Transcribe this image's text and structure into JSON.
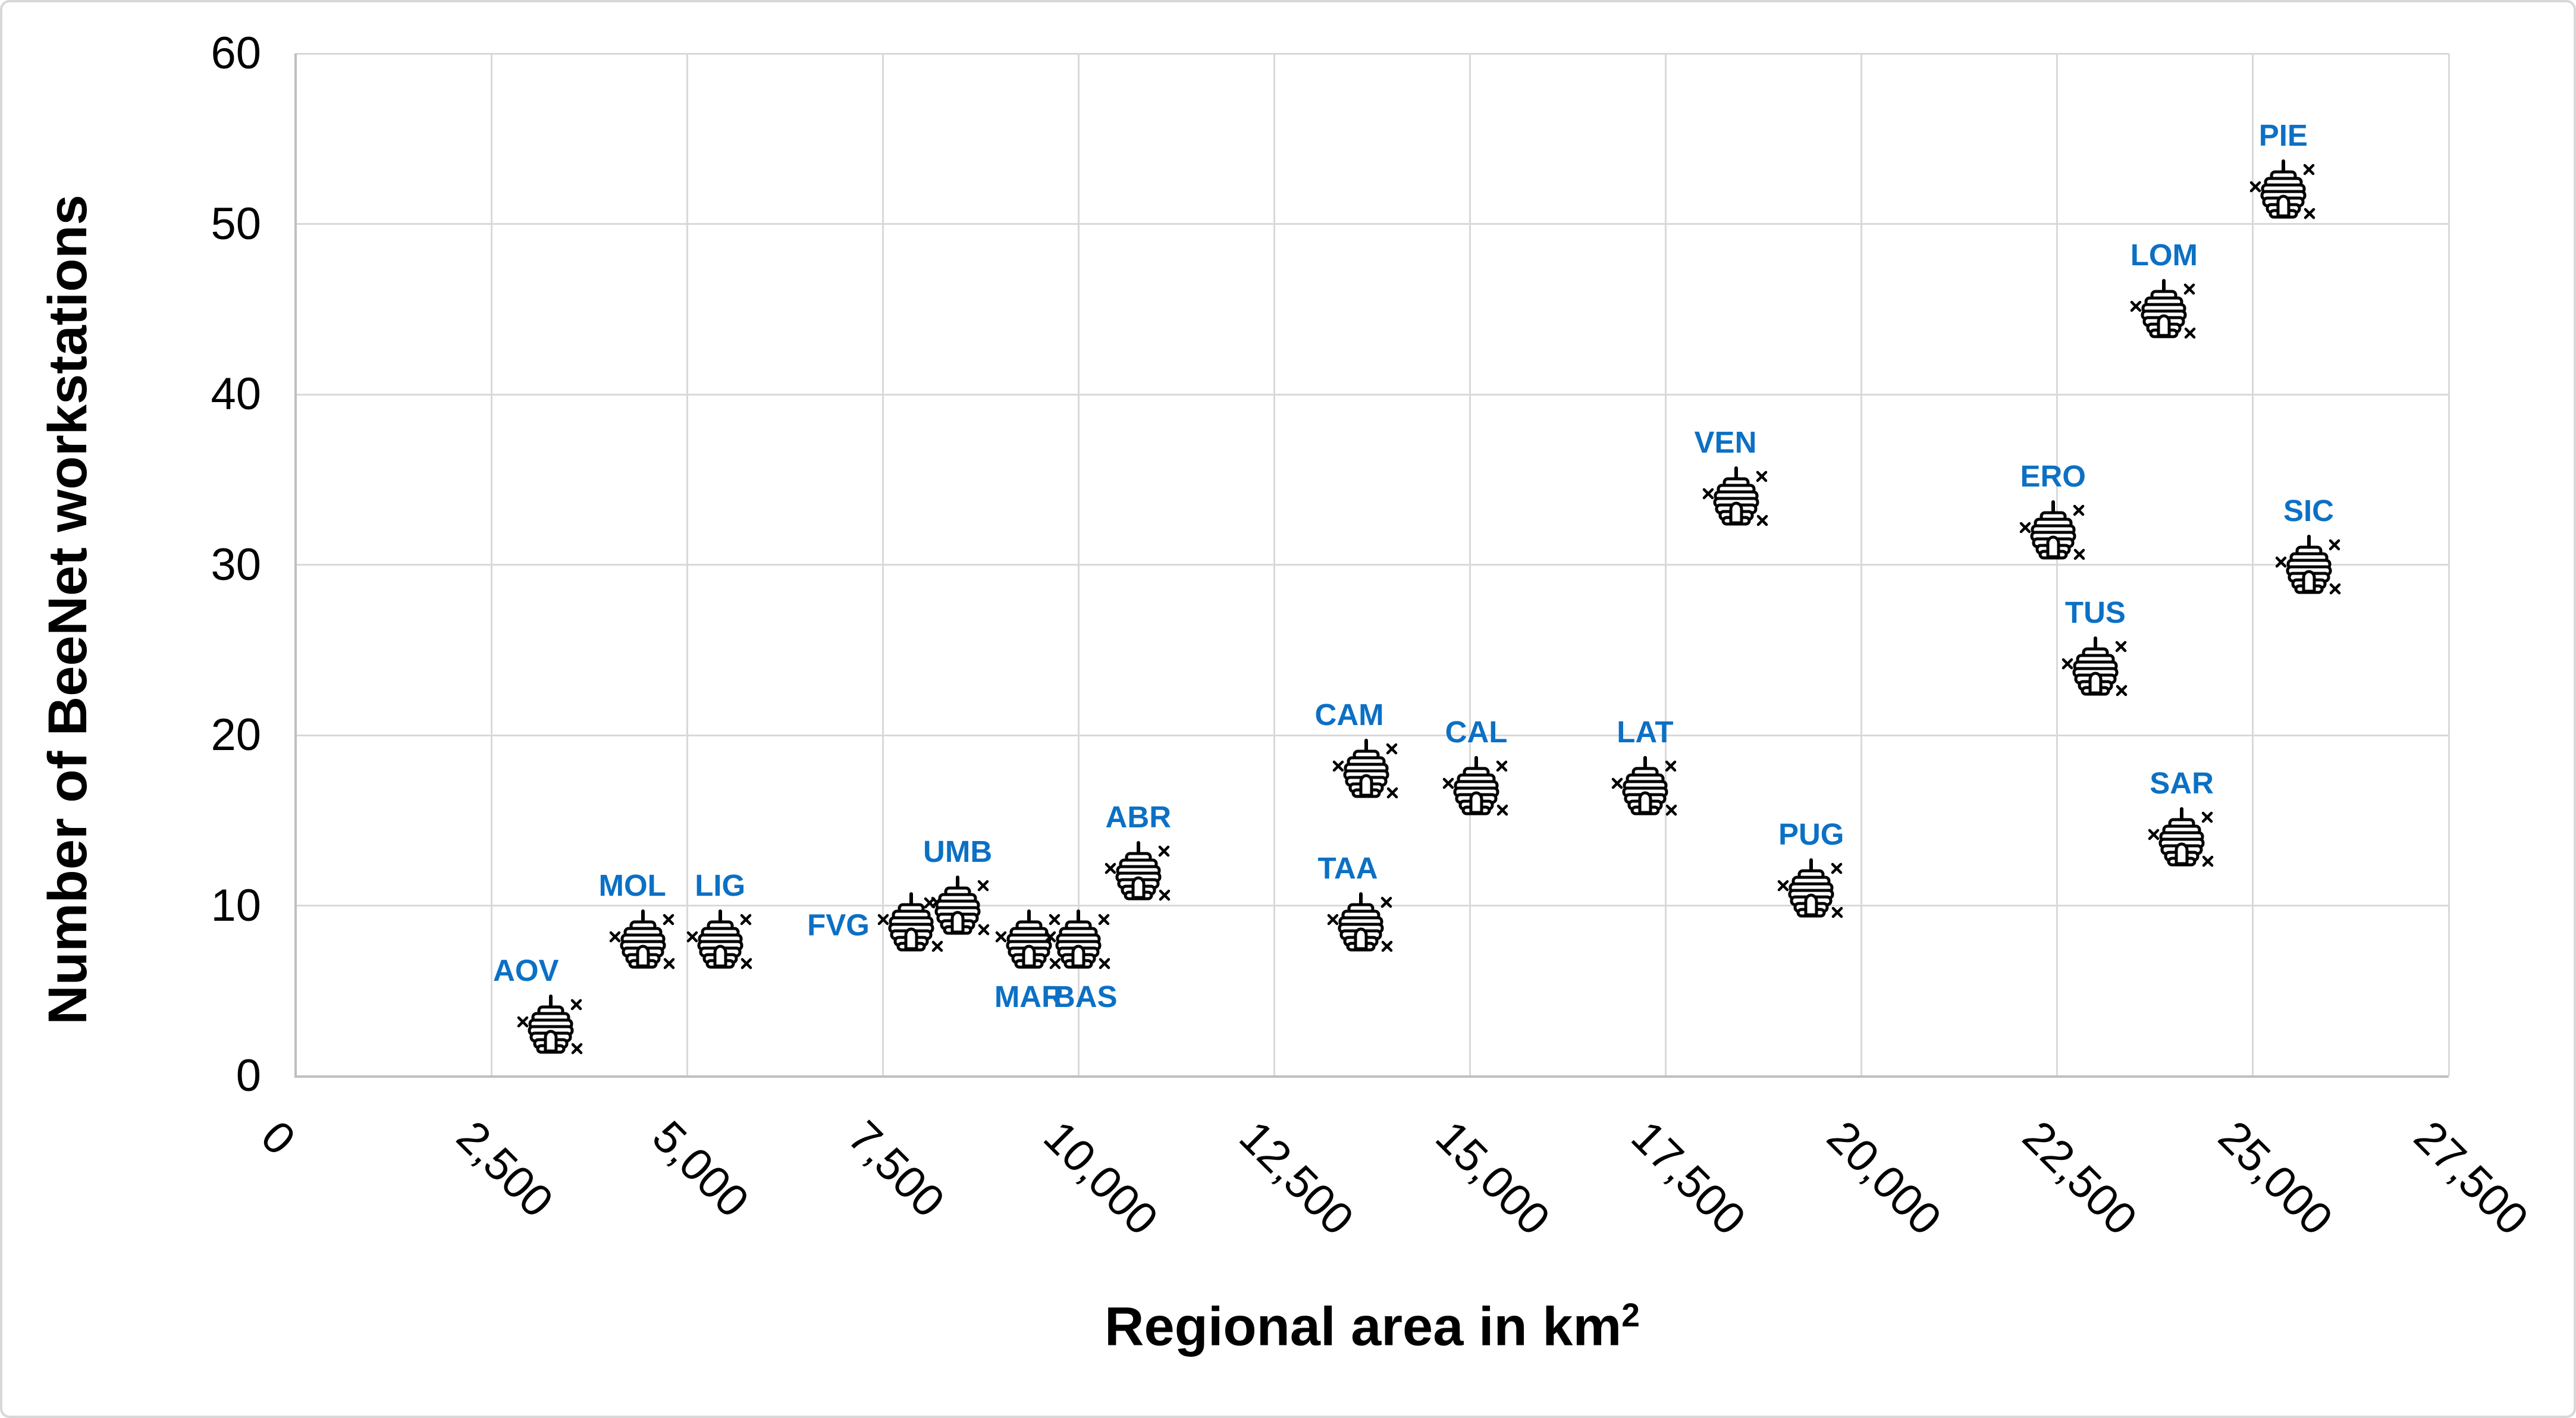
{
  "chart_data": {
    "type": "scatter",
    "title": "",
    "xlabel_main": "Regional area in km",
    "xlabel_sup": "2",
    "ylabel": "Number of BeeNet workstations",
    "x_range": [
      0,
      27500
    ],
    "x_tick_step": 2500,
    "x_tick_labels": [
      "0",
      "2,500",
      "5,000",
      "7,500",
      "10,000",
      "12,500",
      "15,000",
      "17,500",
      "20,000",
      "22,500",
      "25,000",
      "27,500"
    ],
    "y_range": [
      0,
      60
    ],
    "y_tick_step": 10,
    "y_tick_labels": [
      "0",
      "10",
      "20",
      "30",
      "40",
      "50",
      "60"
    ],
    "grid": true,
    "legend": "none",
    "marker": "beehive-with-three-bees-icon",
    "x_tick_rotation_deg": 45,
    "points": [
      {
        "label": "AOV",
        "x": 3261,
        "y": 3,
        "label_pos": "above",
        "dx": -42
      },
      {
        "label": "MOL",
        "x": 4438,
        "y": 8,
        "label_pos": "above",
        "dx": -18
      },
      {
        "label": "LIG",
        "x": 5422,
        "y": 8,
        "label_pos": "above",
        "dx": 0
      },
      {
        "label": "FVG",
        "x": 7862,
        "y": 9,
        "label_pos": "left",
        "dx": 0
      },
      {
        "label": "UMB",
        "x": 8456,
        "y": 10,
        "label_pos": "above",
        "dx": 0
      },
      {
        "label": "MAR",
        "x": 9366,
        "y": 8,
        "label_pos": "below",
        "dx": 0
      },
      {
        "label": "BAS",
        "x": 9995,
        "y": 8,
        "label_pos": "below",
        "dx": 12
      },
      {
        "label": "ABR",
        "x": 10763,
        "y": 12,
        "label_pos": "above",
        "dx": 0
      },
      {
        "label": "TAA",
        "x": 13606,
        "y": 9,
        "label_pos": "above",
        "dx": -22
      },
      {
        "label": "CAM",
        "x": 13671,
        "y": 18,
        "label_pos": "above",
        "dx": -28
      },
      {
        "label": "CAL",
        "x": 15080,
        "y": 17,
        "label_pos": "above",
        "dx": 0
      },
      {
        "label": "LAT",
        "x": 17236,
        "y": 17,
        "label_pos": "above",
        "dx": 0
      },
      {
        "label": "VEN",
        "x": 18399,
        "y": 34,
        "label_pos": "above",
        "dx": -18
      },
      {
        "label": "PUG",
        "x": 19358,
        "y": 11,
        "label_pos": "above",
        "dx": 0
      },
      {
        "label": "ERO",
        "x": 22446,
        "y": 32,
        "label_pos": "above",
        "dx": 0
      },
      {
        "label": "TUS",
        "x": 22987,
        "y": 24,
        "label_pos": "above",
        "dx": 0
      },
      {
        "label": "LOM",
        "x": 23864,
        "y": 45,
        "label_pos": "above",
        "dx": 0
      },
      {
        "label": "SAR",
        "x": 24090,
        "y": 14,
        "label_pos": "above",
        "dx": 0
      },
      {
        "label": "PIE",
        "x": 25387,
        "y": 52,
        "label_pos": "above",
        "dx": 0
      },
      {
        "label": "SIC",
        "x": 25711,
        "y": 30,
        "label_pos": "above",
        "dx": 0
      }
    ]
  },
  "colors": {
    "region_label": "#0C70C4",
    "gridline": "#D9D9D9",
    "axis_line": "#BFBFBF",
    "text": "#000000",
    "marker": "#000000",
    "background": "#FFFFFF"
  }
}
